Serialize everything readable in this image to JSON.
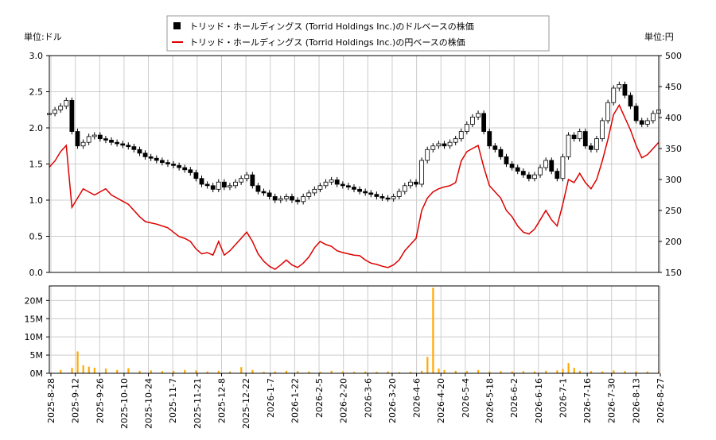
{
  "chart_data": {
    "type": "line",
    "legend": {
      "placement": "top-center",
      "entries": [
        {
          "label": "トリッド・ホールディングス (Torrid Holdings Inc.)のドルベースの株価",
          "color": "#000000",
          "marker": "square"
        },
        {
          "label": "トリッド・ホールディングス (Torrid Holdings Inc.)の円ベースの株価",
          "color": "#dd0000",
          "marker": "line"
        }
      ]
    },
    "left_axis": {
      "label": "単位:ドル",
      "ylim": [
        0.0,
        3.0
      ],
      "ticks": [
        "0.0",
        "0.5",
        "1.0",
        "1.5",
        "2.0",
        "2.5",
        "3.0"
      ]
    },
    "right_axis": {
      "label": "単位:円",
      "ylim": [
        150,
        500
      ],
      "ticks": [
        "150",
        "200",
        "250",
        "300",
        "350",
        "400",
        "450",
        "500"
      ]
    },
    "volume_axis": {
      "ylim": [
        0,
        24000000
      ],
      "ticks": [
        {
          "v": 0,
          "label": "0M"
        },
        {
          "v": 5000000,
          "label": "5M"
        },
        {
          "v": 10000000,
          "label": "10M"
        },
        {
          "v": 15000000,
          "label": "15M"
        },
        {
          "v": 20000000,
          "label": "20M"
        }
      ]
    },
    "x_ticks": [
      "2025-8-28",
      "2025-9-12",
      "2025-9-26",
      "2025-10-10",
      "2025-10-24",
      "2025-11-7",
      "2025-11-21",
      "2025-12-8",
      "2025-12-22",
      "2026-1-7",
      "2026-1-22",
      "2026-2-5",
      "2026-2-20",
      "2026-3-6",
      "2026-3-20",
      "2026-4-6",
      "2026-4-20",
      "2026-5-4",
      "2026-5-18",
      "2026-6-2",
      "2026-6-16",
      "2026-7-1",
      "2026-7-16",
      "2026-7-30",
      "2026-8-13",
      "2026-8-27"
    ],
    "grid": true,
    "series": [
      {
        "name": "トリッド・ホールディングス (Torrid Holdings Inc.)のドルベースの株価",
        "type": "candlestick",
        "axis": "left",
        "points": [
          [
            0,
            2.2
          ],
          [
            1,
            2.25
          ],
          [
            2,
            2.3
          ],
          [
            3,
            2.38
          ],
          [
            4,
            1.95
          ],
          [
            5,
            1.75
          ],
          [
            6,
            1.8
          ],
          [
            7,
            1.88
          ],
          [
            8,
            1.9
          ],
          [
            9,
            1.85
          ],
          [
            10,
            1.83
          ],
          [
            11,
            1.8
          ],
          [
            12,
            1.78
          ],
          [
            13,
            1.76
          ],
          [
            14,
            1.74
          ],
          [
            15,
            1.7
          ],
          [
            16,
            1.65
          ],
          [
            17,
            1.6
          ],
          [
            18,
            1.58
          ],
          [
            19,
            1.55
          ],
          [
            20,
            1.52
          ],
          [
            21,
            1.5
          ],
          [
            22,
            1.48
          ],
          [
            23,
            1.45
          ],
          [
            24,
            1.42
          ],
          [
            25,
            1.38
          ],
          [
            26,
            1.3
          ],
          [
            27,
            1.22
          ],
          [
            28,
            1.2
          ],
          [
            29,
            1.15
          ],
          [
            30,
            1.25
          ],
          [
            31,
            1.18
          ],
          [
            32,
            1.2
          ],
          [
            33,
            1.25
          ],
          [
            34,
            1.3
          ],
          [
            35,
            1.35
          ],
          [
            36,
            1.2
          ],
          [
            37,
            1.12
          ],
          [
            38,
            1.1
          ],
          [
            39,
            1.05
          ],
          [
            40,
            1.0
          ],
          [
            41,
            1.02
          ],
          [
            42,
            1.05
          ],
          [
            43,
            1.0
          ],
          [
            44,
            0.98
          ],
          [
            45,
            1.05
          ],
          [
            46,
            1.1
          ],
          [
            47,
            1.15
          ],
          [
            48,
            1.2
          ],
          [
            49,
            1.25
          ],
          [
            50,
            1.28
          ],
          [
            51,
            1.22
          ],
          [
            52,
            1.2
          ],
          [
            53,
            1.18
          ],
          [
            54,
            1.15
          ],
          [
            55,
            1.12
          ],
          [
            56,
            1.1
          ],
          [
            57,
            1.08
          ],
          [
            58,
            1.05
          ],
          [
            59,
            1.03
          ],
          [
            60,
            1.02
          ],
          [
            61,
            1.05
          ],
          [
            62,
            1.12
          ],
          [
            63,
            1.2
          ],
          [
            64,
            1.25
          ],
          [
            65,
            1.22
          ],
          [
            66,
            1.55
          ],
          [
            67,
            1.7
          ],
          [
            68,
            1.75
          ],
          [
            69,
            1.78
          ],
          [
            70,
            1.75
          ],
          [
            71,
            1.8
          ],
          [
            72,
            1.85
          ],
          [
            73,
            1.95
          ],
          [
            74,
            2.05
          ],
          [
            75,
            2.15
          ],
          [
            76,
            2.2
          ],
          [
            77,
            1.95
          ],
          [
            78,
            1.75
          ],
          [
            79,
            1.7
          ],
          [
            80,
            1.6
          ],
          [
            81,
            1.5
          ],
          [
            82,
            1.45
          ],
          [
            83,
            1.4
          ],
          [
            84,
            1.35
          ],
          [
            85,
            1.3
          ],
          [
            86,
            1.35
          ],
          [
            87,
            1.45
          ],
          [
            88,
            1.55
          ],
          [
            89,
            1.4
          ],
          [
            90,
            1.3
          ],
          [
            91,
            1.6
          ],
          [
            92,
            1.9
          ],
          [
            93,
            1.85
          ],
          [
            94,
            1.95
          ],
          [
            95,
            1.75
          ],
          [
            96,
            1.7
          ],
          [
            97,
            1.85
          ],
          [
            98,
            2.1
          ],
          [
            99,
            2.35
          ],
          [
            100,
            2.55
          ],
          [
            101,
            2.6
          ],
          [
            102,
            2.45
          ],
          [
            103,
            2.3
          ],
          [
            104,
            2.1
          ],
          [
            105,
            2.05
          ],
          [
            106,
            2.1
          ],
          [
            107,
            2.2
          ],
          [
            108,
            2.25
          ]
        ]
      },
      {
        "name": "トリッド・ホールディングス (Torrid Holdings Inc.)の円ベースの株価",
        "type": "line",
        "axis": "right",
        "points": [
          [
            0,
            320
          ],
          [
            1,
            330
          ],
          [
            2,
            345
          ],
          [
            3,
            355
          ],
          [
            4,
            255
          ],
          [
            5,
            270
          ],
          [
            6,
            285
          ],
          [
            7,
            280
          ],
          [
            8,
            275
          ],
          [
            9,
            280
          ],
          [
            10,
            285
          ],
          [
            11,
            275
          ],
          [
            12,
            270
          ],
          [
            13,
            265
          ],
          [
            14,
            260
          ],
          [
            15,
            250
          ],
          [
            16,
            240
          ],
          [
            17,
            232
          ],
          [
            18,
            230
          ],
          [
            19,
            228
          ],
          [
            20,
            225
          ],
          [
            21,
            222
          ],
          [
            22,
            215
          ],
          [
            23,
            208
          ],
          [
            24,
            205
          ],
          [
            25,
            200
          ],
          [
            26,
            188
          ],
          [
            27,
            180
          ],
          [
            28,
            182
          ],
          [
            29,
            178
          ],
          [
            30,
            200
          ],
          [
            31,
            178
          ],
          [
            32,
            185
          ],
          [
            33,
            195
          ],
          [
            34,
            205
          ],
          [
            35,
            215
          ],
          [
            36,
            200
          ],
          [
            37,
            180
          ],
          [
            38,
            168
          ],
          [
            39,
            160
          ],
          [
            40,
            155
          ],
          [
            41,
            162
          ],
          [
            42,
            170
          ],
          [
            43,
            162
          ],
          [
            44,
            158
          ],
          [
            45,
            165
          ],
          [
            46,
            175
          ],
          [
            47,
            190
          ],
          [
            48,
            200
          ],
          [
            49,
            195
          ],
          [
            50,
            192
          ],
          [
            51,
            185
          ],
          [
            52,
            182
          ],
          [
            53,
            180
          ],
          [
            54,
            178
          ],
          [
            55,
            177
          ],
          [
            56,
            170
          ],
          [
            57,
            165
          ],
          [
            58,
            163
          ],
          [
            59,
            160
          ],
          [
            60,
            158
          ],
          [
            61,
            162
          ],
          [
            62,
            170
          ],
          [
            63,
            185
          ],
          [
            64,
            195
          ],
          [
            65,
            205
          ],
          [
            66,
            250
          ],
          [
            67,
            270
          ],
          [
            68,
            280
          ],
          [
            69,
            285
          ],
          [
            70,
            288
          ],
          [
            71,
            290
          ],
          [
            72,
            295
          ],
          [
            73,
            330
          ],
          [
            74,
            345
          ],
          [
            75,
            350
          ],
          [
            76,
            355
          ],
          [
            77,
            320
          ],
          [
            78,
            290
          ],
          [
            79,
            280
          ],
          [
            80,
            270
          ],
          [
            81,
            250
          ],
          [
            82,
            240
          ],
          [
            83,
            225
          ],
          [
            84,
            215
          ],
          [
            85,
            212
          ],
          [
            86,
            220
          ],
          [
            87,
            235
          ],
          [
            88,
            250
          ],
          [
            89,
            235
          ],
          [
            90,
            225
          ],
          [
            91,
            260
          ],
          [
            92,
            300
          ],
          [
            93,
            295
          ],
          [
            94,
            310
          ],
          [
            95,
            295
          ],
          [
            96,
            285
          ],
          [
            97,
            300
          ],
          [
            98,
            330
          ],
          [
            99,
            365
          ],
          [
            100,
            405
          ],
          [
            101,
            420
          ],
          [
            102,
            400
          ],
          [
            103,
            380
          ],
          [
            104,
            355
          ],
          [
            105,
            335
          ],
          [
            106,
            340
          ],
          [
            107,
            350
          ],
          [
            108,
            360
          ]
        ]
      }
    ],
    "volume": {
      "name": "Volume",
      "color": "#ffaa00",
      "axis": "volume",
      "points": [
        [
          2,
          900000
        ],
        [
          4,
          1500000
        ],
        [
          5,
          6000000
        ],
        [
          6,
          2200000
        ],
        [
          7,
          1800000
        ],
        [
          8,
          1500000
        ],
        [
          10,
          1300000
        ],
        [
          12,
          900000
        ],
        [
          14,
          1400000
        ],
        [
          16,
          700000
        ],
        [
          18,
          800000
        ],
        [
          20,
          600000
        ],
        [
          22,
          700000
        ],
        [
          24,
          900000
        ],
        [
          26,
          800000
        ],
        [
          28,
          500000
        ],
        [
          30,
          700000
        ],
        [
          32,
          500000
        ],
        [
          34,
          1700000
        ],
        [
          36,
          900000
        ],
        [
          38,
          400000
        ],
        [
          40,
          500000
        ],
        [
          42,
          700000
        ],
        [
          44,
          600000
        ],
        [
          46,
          500000
        ],
        [
          48,
          400000
        ],
        [
          50,
          700000
        ],
        [
          52,
          500000
        ],
        [
          54,
          400000
        ],
        [
          56,
          500000
        ],
        [
          58,
          400000
        ],
        [
          60,
          500000
        ],
        [
          62,
          300000
        ],
        [
          64,
          400000
        ],
        [
          66,
          700000
        ],
        [
          67,
          4500000
        ],
        [
          68,
          23500000
        ],
        [
          69,
          1300000
        ],
        [
          70,
          900000
        ],
        [
          72,
          700000
        ],
        [
          74,
          600000
        ],
        [
          76,
          900000
        ],
        [
          78,
          500000
        ],
        [
          80,
          600000
        ],
        [
          82,
          500000
        ],
        [
          84,
          600000
        ],
        [
          86,
          500000
        ],
        [
          88,
          700000
        ],
        [
          90,
          800000
        ],
        [
          91,
          1200000
        ],
        [
          92,
          2800000
        ],
        [
          93,
          1500000
        ],
        [
          94,
          700000
        ],
        [
          96,
          600000
        ],
        [
          98,
          500000
        ],
        [
          100,
          800000
        ],
        [
          102,
          600000
        ],
        [
          104,
          500000
        ],
        [
          106,
          500000
        ],
        [
          108,
          400000
        ]
      ]
    }
  }
}
